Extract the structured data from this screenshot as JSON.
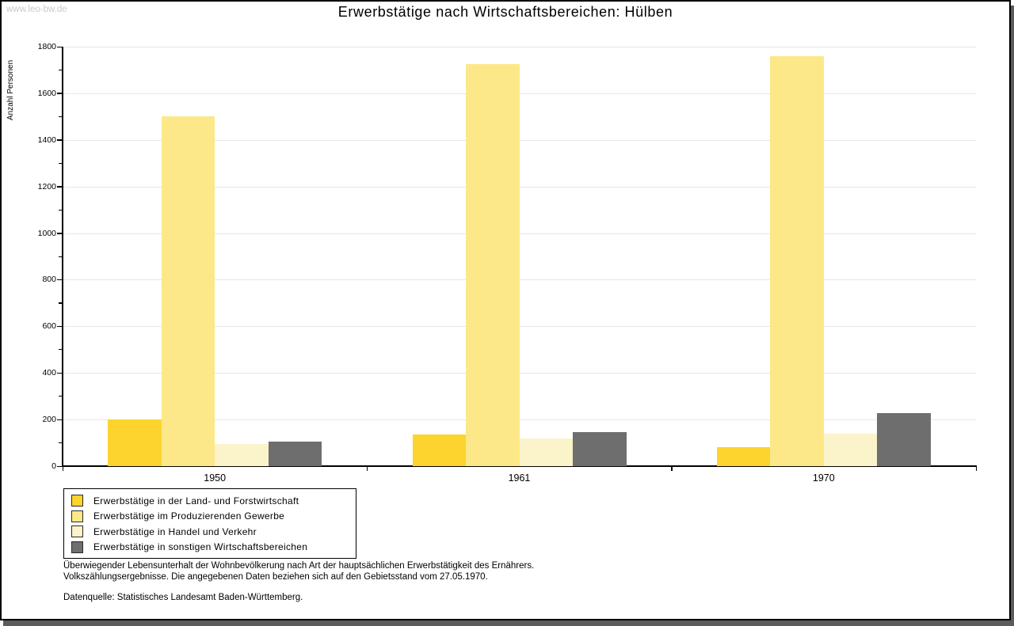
{
  "watermark": "www.leo-bw.de",
  "chart_data": {
    "type": "bar",
    "title": "Erwerbstätige nach Wirtschaftsbereichen: Hülben",
    "ylabel": "Anzahl Personen",
    "xlabel": "",
    "categories": [
      "1950",
      "1961",
      "1970"
    ],
    "series": [
      {
        "name": "Erwerbstätige in der Land- und Forstwirtschaft",
        "color": "#fcd42d",
        "values": [
          200,
          135,
          80
        ]
      },
      {
        "name": "Erwerbstätige im Produzierenden Gewerbe",
        "color": "#fce888",
        "values": [
          1500,
          1725,
          1760
        ]
      },
      {
        "name": "Erwerbstätige in Handel und Verkehr",
        "color": "#fbf3c9",
        "values": [
          95,
          120,
          140
        ]
      },
      {
        "name": "Erwerbstätige in sonstigen Wirtschaftsbereichen",
        "color": "#6e6e6e",
        "values": [
          105,
          145,
          228
        ]
      }
    ],
    "ylim": [
      0,
      1800
    ],
    "ytick_step": 200,
    "minor_tick_step": 100,
    "grid": true,
    "legend_position": "bottom-left"
  },
  "footnotes": [
    "Überwiegender Lebensunterhalt der Wohnbevölkerung nach Art der hauptsächlichen Erwerbstätigkeit des Ernährers.",
    "Volkszählungsergebnisse. Die angegebenen Daten beziehen sich auf den Gebietsstand vom 27.05.1970.",
    "Datenquelle: Statistisches Landesamt Baden-Württemberg."
  ],
  "colors": {
    "gridline": "#e6e6e6",
    "axis": "#000000",
    "frame_border": "#000000",
    "frame_shadow": "#5c5c5c",
    "watermark": "#c9c9c9"
  }
}
